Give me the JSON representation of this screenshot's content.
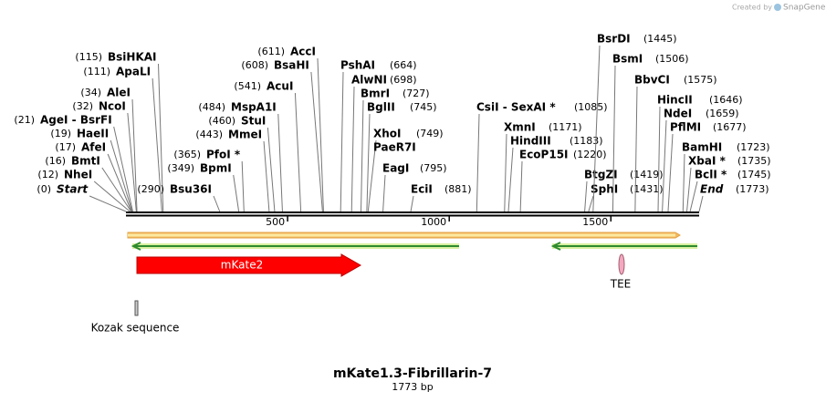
{
  "header": {
    "credit": "Created by",
    "brand": "SnapGene"
  },
  "map": {
    "title": "mKate1.3-Fibrillarin-7",
    "length": {
      "value": 1773,
      "label": "1773 bp"
    },
    "scale_ticks": [
      500,
      1000,
      1500
    ],
    "enzymes": [
      {
        "name": "BsiHKAI",
        "position": {
          "value": 115,
          "label": "(115)"
        }
      },
      {
        "name": "ApaLI",
        "position": {
          "value": 111,
          "label": "(111)"
        }
      },
      {
        "name": "AleI",
        "position": {
          "value": 34,
          "label": "(34)"
        }
      },
      {
        "name": "NcoI",
        "position": {
          "value": 32,
          "label": "(32)"
        }
      },
      {
        "name": "AgeI - BsrFI",
        "position": {
          "value": 21,
          "label": "(21)"
        }
      },
      {
        "name": "HaeII",
        "position": {
          "value": 19,
          "label": "(19)"
        }
      },
      {
        "name": "AfeI",
        "position": {
          "value": 17,
          "label": "(17)"
        }
      },
      {
        "name": "BmtI",
        "position": {
          "value": 16,
          "label": "(16)"
        }
      },
      {
        "name": "NheI",
        "position": {
          "value": 12,
          "label": "(12)"
        }
      },
      {
        "name": "Start",
        "italic": true,
        "position": {
          "value": 0,
          "label": "(0)"
        }
      },
      {
        "name": "Bsu36I",
        "position": {
          "value": 290,
          "label": "(290)"
        }
      },
      {
        "name": "BpmI",
        "position": {
          "value": 349,
          "label": "(349)"
        }
      },
      {
        "name": "PfoI *",
        "position": {
          "value": 365,
          "label": "(365)"
        }
      },
      {
        "name": "MmeI",
        "position": {
          "value": 443,
          "label": "(443)"
        }
      },
      {
        "name": "StuI",
        "position": {
          "value": 460,
          "label": "(460)"
        }
      },
      {
        "name": "MspA1I",
        "position": {
          "value": 484,
          "label": "(484)"
        }
      },
      {
        "name": "AcuI",
        "position": {
          "value": 541,
          "label": "(541)"
        }
      },
      {
        "name": "BsaHI",
        "position": {
          "value": 608,
          "label": "(608)"
        }
      },
      {
        "name": "AccI",
        "position": {
          "value": 611,
          "label": "(611)"
        }
      },
      {
        "name": "PshAI",
        "position": {
          "value": 664,
          "label": "(664)"
        }
      },
      {
        "name": "AlwNI",
        "position": {
          "value": 698,
          "label": "(698)"
        }
      },
      {
        "name": "BmrI",
        "position": {
          "value": 727,
          "label": "(727)"
        }
      },
      {
        "name": "BglII",
        "position": {
          "value": 745,
          "label": "(745)"
        }
      },
      {
        "name": "XhoI",
        "position": {
          "value": 749,
          "label": "(749)"
        }
      },
      {
        "name": "PaeR7I"
      },
      {
        "name": "EagI",
        "position": {
          "value": 795,
          "label": "(795)"
        }
      },
      {
        "name": "EciI",
        "position": {
          "value": 881,
          "label": "(881)"
        }
      },
      {
        "name": "CsiI - SexAI *",
        "position": {
          "value": 1085,
          "label": "(1085)"
        }
      },
      {
        "name": "XmnI",
        "position": {
          "value": 1171,
          "label": "(1171)"
        }
      },
      {
        "name": "HindIII",
        "position": {
          "value": 1183,
          "label": "(1183)"
        }
      },
      {
        "name": "EcoP15I",
        "position": {
          "value": 1220,
          "label": "(1220)"
        }
      },
      {
        "name": "BtgZI",
        "position": {
          "value": 1419,
          "label": "(1419)"
        }
      },
      {
        "name": "SphI",
        "position": {
          "value": 1431,
          "label": "(1431)"
        }
      },
      {
        "name": "BsrDI",
        "position": {
          "value": 1445,
          "label": "(1445)"
        }
      },
      {
        "name": "BsmI",
        "position": {
          "value": 1506,
          "label": "(1506)"
        }
      },
      {
        "name": "BbvCI",
        "position": {
          "value": 1575,
          "label": "(1575)"
        }
      },
      {
        "name": "HincII",
        "position": {
          "value": 1646,
          "label": "(1646)"
        }
      },
      {
        "name": "NdeI",
        "position": {
          "value": 1659,
          "label": "(1659)"
        }
      },
      {
        "name": "PflMI",
        "position": {
          "value": 1677,
          "label": "(1677)"
        }
      },
      {
        "name": "BamHI",
        "position": {
          "value": 1723,
          "label": "(1723)"
        }
      },
      {
        "name": "XbaI *",
        "position": {
          "value": 1735,
          "label": "(1735)"
        }
      },
      {
        "name": "BclI *",
        "position": {
          "value": 1745,
          "label": "(1745)"
        }
      },
      {
        "name": "End",
        "italic": true,
        "position": {
          "value": 1773,
          "label": "(1773)"
        }
      }
    ],
    "features": [
      {
        "name": "mKate2"
      },
      {
        "name": "TEE"
      },
      {
        "name": "Kozak sequence"
      }
    ]
  }
}
